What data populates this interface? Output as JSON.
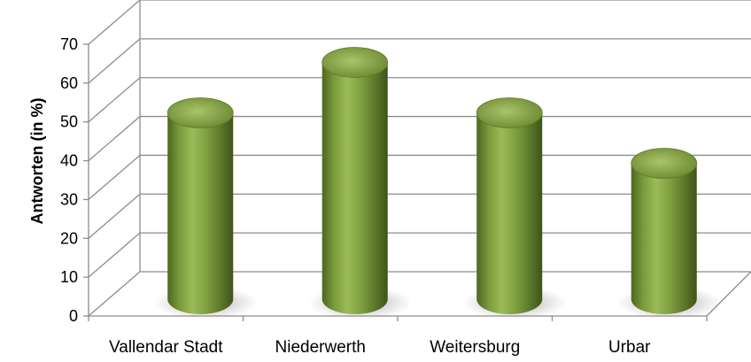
{
  "chart_data": {
    "type": "bar",
    "style": "3d-cylinder",
    "categories": [
      "Vallendar Stadt",
      "Niederwerth",
      "Weitersburg",
      "Urbar"
    ],
    "values": [
      48,
      61,
      48,
      35
    ],
    "ylabel": "Antworten  (in %)",
    "xlabel": "",
    "title": "",
    "ylim": [
      0,
      70
    ],
    "yticks": [
      0,
      10,
      20,
      30,
      40,
      50,
      60,
      70
    ],
    "grid": true,
    "legend": "none",
    "colors": {
      "bar": "#76923C",
      "bar_dark": "#3F5219",
      "bar_light": "#A9C46A",
      "grid": "#8C8C8C"
    }
  }
}
